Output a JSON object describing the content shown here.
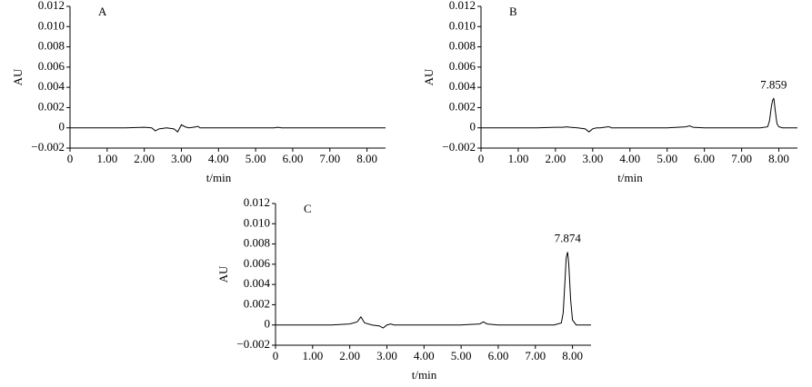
{
  "chart_data": [
    {
      "type": "line",
      "label": "A",
      "color": "#000000",
      "xlabel": "t/min",
      "ylabel": "AU",
      "xlim": [
        0,
        8.5
      ],
      "ylim": [
        -0.002,
        0.012
      ],
      "xticks": [
        0,
        {
          "value": 1,
          "label": "1.00"
        },
        {
          "value": 2,
          "label": "2.00"
        },
        {
          "value": 3,
          "label": "3.00"
        },
        {
          "value": 4,
          "label": "4.00"
        },
        {
          "value": 5,
          "label": "5.00"
        },
        {
          "value": 6,
          "label": "6.00"
        },
        {
          "value": 7,
          "label": "7.00"
        },
        {
          "value": 8,
          "label": "8.00"
        }
      ],
      "yticks": [
        {
          "value": -0.002,
          "label": "−0.002"
        },
        0,
        0.002,
        0.004,
        0.006,
        0.008,
        {
          "value": 0.01,
          "label": "0.010"
        },
        0.012
      ],
      "x": [
        0,
        0.5,
        1,
        1.5,
        2,
        2.2,
        2.3,
        2.4,
        2.6,
        2.8,
        2.9,
        3,
        3.1,
        3.2,
        3.4,
        3.45,
        3.5,
        3.7,
        4,
        4.5,
        5,
        5.5,
        5.6,
        5.7,
        6,
        6.5,
        7,
        7.5,
        7.7,
        7.75,
        7.8,
        7.83,
        7.86,
        7.87,
        7.9,
        7.95,
        8,
        8.1,
        8.5
      ],
      "values": [
        0,
        0,
        0,
        0,
        5e-05,
        0,
        -0.0003,
        -0.0001,
        0,
        -0.0001,
        -0.0004,
        0.0003,
        0.0001,
        0,
        0.0001,
        0.00015,
        0,
        0,
        0,
        0,
        0,
        0,
        5e-05,
        0,
        0,
        0,
        0,
        0,
        0,
        0,
        0,
        0,
        0,
        0,
        0,
        0,
        0,
        0,
        0
      ]
    },
    {
      "type": "line",
      "label": "B",
      "color": "#000000",
      "xlabel": "t/min",
      "ylabel": "AU",
      "peak_label": "7.859",
      "xlim": [
        0,
        8.5
      ],
      "ylim": [
        -0.002,
        0.012
      ],
      "xticks": [
        0,
        {
          "value": 1,
          "label": "1.00"
        },
        {
          "value": 2,
          "label": "2.00"
        },
        {
          "value": 3,
          "label": "3.00"
        },
        {
          "value": 4,
          "label": "4.00"
        },
        {
          "value": 5,
          "label": "5.00"
        },
        {
          "value": 6,
          "label": "6.00"
        },
        {
          "value": 7,
          "label": "7.00"
        },
        {
          "value": 8,
          "label": "8.00"
        }
      ],
      "yticks": [
        {
          "value": -0.002,
          "label": "−0.002"
        },
        0,
        0.002,
        0.004,
        0.006,
        0.008,
        {
          "value": 0.01,
          "label": "0.010"
        },
        0.012
      ],
      "x": [
        0,
        0.5,
        1,
        1.5,
        2,
        2.2,
        2.3,
        2.4,
        2.6,
        2.8,
        2.9,
        3,
        3.1,
        3.2,
        3.4,
        3.45,
        3.5,
        3.7,
        4,
        4.5,
        5,
        5.5,
        5.6,
        5.7,
        6,
        6.5,
        7,
        7.5,
        7.7,
        7.75,
        7.8,
        7.83,
        7.86,
        7.87,
        7.9,
        7.95,
        8,
        8.1,
        8.5
      ],
      "values": [
        0,
        0,
        0,
        0,
        5e-05,
        5e-05,
        0.0001,
        5e-05,
        0,
        -0.0001,
        -0.0004,
        -0.0001,
        0,
        0,
        0.0001,
        0.0001,
        0,
        0,
        0,
        0,
        0,
        0.0001,
        0.0002,
        5e-05,
        0,
        0,
        0,
        0,
        0.0001,
        0.0007,
        0.0021,
        0.0027,
        0.0029,
        0.0028,
        0.0018,
        0.0004,
        0.0001,
        0,
        0
      ]
    },
    {
      "type": "line",
      "label": "C",
      "color": "#000000",
      "xlabel": "t/min",
      "ylabel": "AU",
      "peak_label": "7.874",
      "xlim": [
        0,
        8.5
      ],
      "ylim": [
        -0.002,
        0.012
      ],
      "xticks": [
        0,
        {
          "value": 1,
          "label": "1.00"
        },
        {
          "value": 2,
          "label": "2.00"
        },
        {
          "value": 3,
          "label": "3.00"
        },
        {
          "value": 4,
          "label": "4.00"
        },
        {
          "value": 5,
          "label": "5.00"
        },
        {
          "value": 6,
          "label": "6.00"
        },
        {
          "value": 7,
          "label": "7.00"
        },
        {
          "value": 8,
          "label": "8.00"
        }
      ],
      "yticks": [
        {
          "value": -0.002,
          "label": "−0.002"
        },
        0,
        0.002,
        0.004,
        0.006,
        0.008,
        {
          "value": 0.01,
          "label": "0.010"
        },
        0.012
      ],
      "x": [
        0,
        0.5,
        1,
        1.5,
        2,
        2.2,
        2.3,
        2.4,
        2.6,
        2.8,
        2.9,
        3,
        3.1,
        3.2,
        3.4,
        3.45,
        3.5,
        3.7,
        4,
        4.5,
        5,
        5.5,
        5.6,
        5.7,
        6,
        6.5,
        7,
        7.5,
        7.7,
        7.75,
        7.8,
        7.83,
        7.86,
        7.87,
        7.9,
        7.95,
        8,
        8.1,
        8.5
      ],
      "values": [
        0,
        0,
        0,
        0,
        0.0001,
        0.0003,
        0.0008,
        0.0002,
        0,
        -0.0001,
        -0.0003,
        0,
        0.0001,
        0,
        0,
        0,
        0,
        0,
        0,
        0,
        0,
        0.0001,
        0.0003,
        0.0001,
        0,
        0,
        0,
        0,
        0.0002,
        0.0012,
        0.0045,
        0.0066,
        0.0071,
        0.0072,
        0.006,
        0.0025,
        0.0005,
        0,
        0
      ]
    }
  ]
}
